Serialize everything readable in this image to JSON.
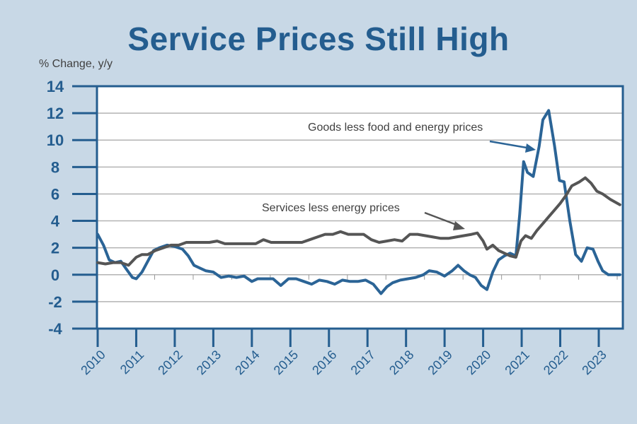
{
  "colors": {
    "background": "#c8d8e6",
    "title": "#245d8f",
    "axis": "#245d8f",
    "goods": "#2b6496",
    "services": "#555555",
    "grid": "#b3b3b3"
  },
  "chart_data": {
    "type": "line",
    "title": "Service Prices Still High",
    "xlabel": "",
    "ylabel": "% Change, y/y",
    "xlim": [
      2010,
      2023.6
    ],
    "ylim": [
      -4,
      14
    ],
    "yticks": [
      14,
      12,
      10,
      8,
      6,
      4,
      2,
      0,
      -2,
      -4
    ],
    "xticks": [
      "2010",
      "2011",
      "2012",
      "2013",
      "2014",
      "2015",
      "2016",
      "2017",
      "2018",
      "2019",
      "2020",
      "2021",
      "2022",
      "2023"
    ],
    "grid": true,
    "legend": "none (inline annotations)",
    "annotations": [
      {
        "text": "Goods less food and energy prices",
        "series": "goods",
        "points_to": [
          2021.7,
          9.5
        ]
      },
      {
        "text": "Services less energy prices",
        "series": "services",
        "points_to": [
          2019.6,
          3.1
        ]
      }
    ],
    "series": [
      {
        "name": "Goods less food and energy prices",
        "key": "goods",
        "x": [
          2010.0,
          2010.15,
          2010.3,
          2010.45,
          2010.6,
          2010.75,
          2010.9,
          2011.0,
          2011.15,
          2011.3,
          2011.45,
          2011.6,
          2011.8,
          2012.0,
          2012.2,
          2012.35,
          2012.5,
          2012.65,
          2012.8,
          2013.0,
          2013.2,
          2013.4,
          2013.6,
          2013.8,
          2014.0,
          2014.15,
          2014.35,
          2014.55,
          2014.75,
          2014.95,
          2015.15,
          2015.35,
          2015.55,
          2015.75,
          2015.95,
          2016.15,
          2016.35,
          2016.55,
          2016.75,
          2016.95,
          2017.15,
          2017.35,
          2017.5,
          2017.65,
          2017.85,
          2018.05,
          2018.25,
          2018.45,
          2018.6,
          2018.8,
          2019.0,
          2019.2,
          2019.35,
          2019.5,
          2019.65,
          2019.8,
          2019.95,
          2020.1,
          2020.25,
          2020.4,
          2020.55,
          2020.7,
          2020.85,
          2020.95,
          2021.05,
          2021.15,
          2021.3,
          2021.45,
          2021.55,
          2021.7,
          2021.85,
          2021.98,
          2022.1,
          2022.25,
          2022.4,
          2022.55,
          2022.7,
          2022.85,
          2022.98,
          2023.1,
          2023.25,
          2023.4,
          2023.55
        ],
        "values": [
          3.0,
          2.2,
          1.1,
          0.9,
          1.0,
          0.4,
          -0.2,
          -0.3,
          0.2,
          1.0,
          1.8,
          2.0,
          2.2,
          2.1,
          1.9,
          1.4,
          0.7,
          0.5,
          0.3,
          0.2,
          -0.2,
          -0.1,
          -0.2,
          -0.1,
          -0.5,
          -0.3,
          -0.3,
          -0.3,
          -0.8,
          -0.3,
          -0.3,
          -0.5,
          -0.7,
          -0.4,
          -0.5,
          -0.7,
          -0.4,
          -0.5,
          -0.5,
          -0.4,
          -0.7,
          -1.4,
          -0.9,
          -0.6,
          -0.4,
          -0.3,
          -0.2,
          0.0,
          0.3,
          0.2,
          -0.1,
          0.3,
          0.7,
          0.3,
          0.0,
          -0.2,
          -0.8,
          -1.1,
          0.2,
          1.1,
          1.4,
          1.6,
          1.4,
          4.5,
          8.4,
          7.6,
          7.3,
          9.5,
          11.5,
          12.2,
          9.6,
          7.0,
          6.9,
          4.0,
          1.5,
          1.0,
          2.0,
          1.9,
          1.0,
          0.3,
          0.0,
          0.0,
          0.0
        ]
      },
      {
        "name": "Services less energy prices",
        "key": "services",
        "x": [
          2010.0,
          2010.2,
          2010.4,
          2010.6,
          2010.8,
          2011.0,
          2011.15,
          2011.3,
          2011.5,
          2011.7,
          2011.9,
          2012.1,
          2012.3,
          2012.5,
          2012.7,
          2012.9,
          2013.1,
          2013.3,
          2013.5,
          2013.7,
          2013.9,
          2014.1,
          2014.3,
          2014.5,
          2014.7,
          2014.9,
          2015.1,
          2015.3,
          2015.5,
          2015.7,
          2015.9,
          2016.1,
          2016.3,
          2016.5,
          2016.7,
          2016.9,
          2017.1,
          2017.3,
          2017.5,
          2017.7,
          2017.9,
          2018.1,
          2018.3,
          2018.5,
          2018.7,
          2018.9,
          2019.1,
          2019.3,
          2019.5,
          2019.7,
          2019.85,
          2020.0,
          2020.1,
          2020.25,
          2020.4,
          2020.55,
          2020.7,
          2020.85,
          2020.98,
          2021.1,
          2021.25,
          2021.4,
          2021.55,
          2021.7,
          2021.85,
          2022.0,
          2022.15,
          2022.3,
          2022.5,
          2022.65,
          2022.8,
          2022.95,
          2023.1,
          2023.3,
          2023.55
        ],
        "values": [
          0.9,
          0.8,
          0.9,
          0.9,
          0.7,
          1.3,
          1.5,
          1.5,
          1.8,
          2.0,
          2.2,
          2.2,
          2.4,
          2.4,
          2.4,
          2.4,
          2.5,
          2.3,
          2.3,
          2.3,
          2.3,
          2.3,
          2.6,
          2.4,
          2.4,
          2.4,
          2.4,
          2.4,
          2.6,
          2.8,
          3.0,
          3.0,
          3.2,
          3.0,
          3.0,
          3.0,
          2.6,
          2.4,
          2.5,
          2.6,
          2.5,
          3.0,
          3.0,
          2.9,
          2.8,
          2.7,
          2.7,
          2.8,
          2.9,
          3.0,
          3.1,
          2.5,
          1.9,
          2.2,
          1.8,
          1.6,
          1.4,
          1.3,
          2.5,
          2.9,
          2.7,
          3.3,
          3.8,
          4.3,
          4.8,
          5.3,
          5.9,
          6.6,
          6.9,
          7.2,
          6.8,
          6.2,
          6.0,
          5.6,
          5.2
        ]
      }
    ]
  }
}
